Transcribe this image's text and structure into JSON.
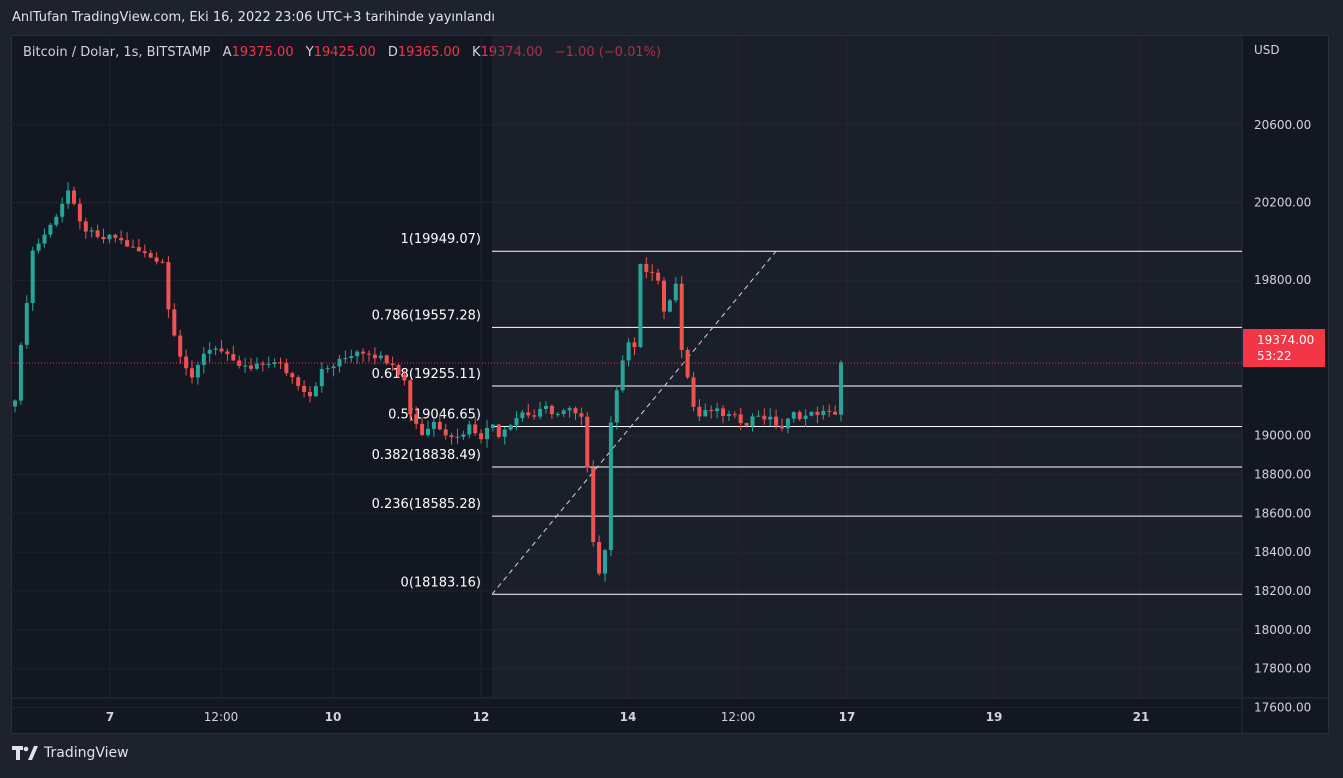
{
  "header": {
    "publish_text": "AnlTufan TradingView.com, Eki 16, 2022 23:06 UTC+3 tarihinde yayınlandı"
  },
  "legend": {
    "symbol": "Bitcoin / Dolar, 1s, BITSTAMP",
    "open_label": "A",
    "open": "19375.00",
    "high_label": "Y",
    "high": "19425.00",
    "low_label": "D",
    "low": "19365.00",
    "close_label": "K",
    "close": "19374.00",
    "change": "−1.00 (−0.01%)"
  },
  "price_tag": {
    "price": "19374.00",
    "countdown": "53:22"
  },
  "footer": {
    "brand": "TradingView"
  },
  "colors": {
    "background": "#131722",
    "up": "#26a69a",
    "down": "#ef5350",
    "price_line": "#f23645"
  },
  "chart_data": {
    "type": "candlestick",
    "currency_label": "USD",
    "y_ticks": [
      17600,
      17800,
      18000,
      18200,
      18400,
      18600,
      18800,
      19000,
      19800,
      20200,
      20600
    ],
    "y_tick_labels": [
      "17600.00",
      "17800.00",
      "18000.00",
      "18200.00",
      "18400.00",
      "18600.00",
      "18800.00",
      "19000.00",
      "19800.00",
      "20200.00",
      "20600.00"
    ],
    "x_ticks": [
      {
        "label": "7",
        "bold": true
      },
      {
        "label": "12:00",
        "bold": false
      },
      {
        "label": "10",
        "bold": true
      },
      {
        "label": "12",
        "bold": true
      },
      {
        "label": "14",
        "bold": true
      },
      {
        "label": "12:00",
        "bold": false
      },
      {
        "label": "17",
        "bold": true
      },
      {
        "label": "19",
        "bold": true
      },
      {
        "label": "21",
        "bold": true
      }
    ],
    "last_price": 19374,
    "fibonacci": [
      {
        "label": "1(19949.07)",
        "price": 19949.07
      },
      {
        "label": "0.786(19557.28)",
        "price": 19557.28
      },
      {
        "label": "0.618(19255.11)",
        "price": 19255.11
      },
      {
        "label": "0.5(19046.65)",
        "price": 19046.65
      },
      {
        "label": "0.382(18838.49)",
        "price": 18838.49
      },
      {
        "label": "0.236(18585.28)",
        "price": 18585.28
      },
      {
        "label": "0(18183.16)",
        "price": 18183.16
      }
    ],
    "trend_line": {
      "from": 18183.16,
      "to": 19949.07
    },
    "path": [
      [
        0,
        19200
      ],
      [
        3,
        19950
      ],
      [
        6,
        20080
      ],
      [
        9,
        20260
      ],
      [
        11,
        20090
      ],
      [
        14,
        20010
      ],
      [
        17,
        20020
      ],
      [
        20,
        19960
      ],
      [
        23,
        19920
      ],
      [
        25,
        19900
      ],
      [
        26,
        19650
      ],
      [
        28,
        19420
      ],
      [
        30,
        19280
      ],
      [
        32,
        19430
      ],
      [
        34,
        19460
      ],
      [
        37,
        19370
      ],
      [
        40,
        19340
      ],
      [
        43,
        19380
      ],
      [
        45,
        19360
      ],
      [
        47,
        19300
      ],
      [
        50,
        19210
      ],
      [
        52,
        19330
      ],
      [
        54,
        19360
      ],
      [
        56,
        19400
      ],
      [
        58,
        19440
      ],
      [
        60,
        19430
      ],
      [
        62,
        19400
      ],
      [
        64,
        19380
      ],
      [
        65,
        19330
      ],
      [
        66,
        19280
      ],
      [
        67,
        19120
      ],
      [
        69,
        19010
      ],
      [
        71,
        19070
      ],
      [
        73,
        19020
      ],
      [
        75,
        18990
      ],
      [
        77,
        19050
      ],
      [
        79,
        19000
      ],
      [
        81,
        19060
      ],
      [
        82,
        19010
      ],
      [
        84,
        19070
      ],
      [
        86,
        19120
      ],
      [
        88,
        19100
      ],
      [
        90,
        19140
      ],
      [
        92,
        19110
      ],
      [
        94,
        19130
      ],
      [
        96,
        19080
      ],
      [
        97,
        18850
      ],
      [
        98,
        18470
      ],
      [
        99,
        18290
      ],
      [
        100,
        18420
      ],
      [
        101,
        19050
      ],
      [
        102,
        19250
      ],
      [
        103,
        19400
      ],
      [
        104,
        19480
      ],
      [
        105,
        19440
      ],
      [
        106,
        19890
      ],
      [
        107,
        19840
      ],
      [
        108,
        19830
      ],
      [
        109,
        19780
      ],
      [
        110,
        19650
      ],
      [
        111,
        19690
      ],
      [
        112,
        19800
      ],
      [
        113,
        19460
      ],
      [
        114,
        19300
      ],
      [
        115,
        19150
      ],
      [
        116,
        19100
      ],
      [
        118,
        19130
      ],
      [
        120,
        19110
      ],
      [
        122,
        19090
      ],
      [
        124,
        19070
      ],
      [
        126,
        19110
      ],
      [
        128,
        19080
      ],
      [
        130,
        19040
      ],
      [
        132,
        19110
      ],
      [
        134,
        19100
      ],
      [
        136,
        19120
      ],
      [
        138,
        19110
      ],
      [
        139,
        19120
      ],
      [
        140,
        19380
      ]
    ]
  }
}
